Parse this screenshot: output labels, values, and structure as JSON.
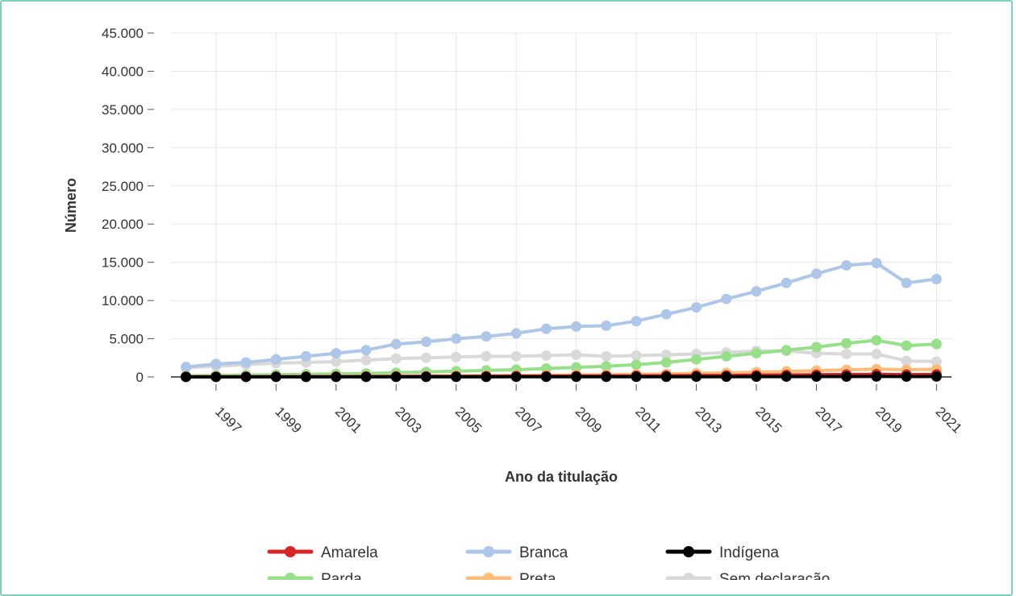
{
  "chart_data": {
    "type": "line",
    "xlabel": "Ano da titulação",
    "ylabel": "Número",
    "ylim": [
      0,
      45000
    ],
    "yticks": [
      0,
      5000,
      10000,
      15000,
      20000,
      25000,
      30000,
      35000,
      40000,
      45000
    ],
    "ytick_labels": [
      "0",
      "5.000",
      "10.000",
      "15.000",
      "20.000",
      "25.000",
      "30.000",
      "35.000",
      "40.000",
      "45.000"
    ],
    "xlim": [
      1995.5,
      2021.5
    ],
    "xticks": [
      1997,
      1999,
      2001,
      2003,
      2005,
      2007,
      2009,
      2011,
      2013,
      2015,
      2017,
      2019,
      2021
    ],
    "xtick_labels": [
      "1997",
      "1999",
      "2001",
      "2003",
      "2005",
      "2007",
      "2009",
      "2011",
      "2013",
      "2015",
      "2017",
      "2019",
      "2021"
    ],
    "x": [
      1996,
      1997,
      1998,
      1999,
      2000,
      2001,
      2002,
      2003,
      2004,
      2005,
      2006,
      2007,
      2008,
      2009,
      2010,
      2011,
      2012,
      2013,
      2014,
      2015,
      2016,
      2017,
      2018,
      2019,
      2020,
      2021
    ],
    "grid": true,
    "legend_position": "bottom",
    "series": [
      {
        "name": "Amarela",
        "color": "#d62728",
        "values": [
          20,
          25,
          30,
          35,
          40,
          45,
          50,
          60,
          70,
          80,
          90,
          100,
          110,
          120,
          130,
          140,
          160,
          180,
          200,
          230,
          260,
          290,
          320,
          350,
          310,
          330
        ]
      },
      {
        "name": "Branca",
        "color": "#aec7e8",
        "values": [
          1300,
          1700,
          1900,
          2300,
          2700,
          3100,
          3500,
          4300,
          4600,
          5000,
          5300,
          5700,
          6300,
          6600,
          6700,
          7300,
          8200,
          9100,
          10200,
          11200,
          12300,
          13500,
          14600,
          14900,
          12300,
          12800
        ]
      },
      {
        "name": "Indígena",
        "color": "#000000",
        "values": [
          5,
          5,
          6,
          7,
          8,
          9,
          10,
          10,
          12,
          13,
          15,
          17,
          19,
          20,
          22,
          25,
          28,
          32,
          36,
          40,
          45,
          50,
          55,
          60,
          55,
          60
        ]
      },
      {
        "name": "Parda",
        "color": "#98df8a",
        "values": [
          150,
          200,
          250,
          300,
          350,
          400,
          450,
          550,
          650,
          750,
          850,
          950,
          1100,
          1250,
          1400,
          1600,
          1900,
          2300,
          2700,
          3100,
          3500,
          3900,
          4400,
          4800,
          4100,
          4300
        ]
      },
      {
        "name": "Preta",
        "color": "#ffbb78",
        "values": [
          30,
          40,
          50,
          60,
          70,
          80,
          90,
          110,
          130,
          150,
          170,
          200,
          230,
          260,
          300,
          340,
          400,
          470,
          540,
          620,
          720,
          830,
          940,
          1020,
          950,
          1000
        ]
      },
      {
        "name": "Sem declaração",
        "color": "#d9d9d9",
        "values": [
          1200,
          1400,
          1600,
          1800,
          1900,
          2000,
          2200,
          2400,
          2500,
          2600,
          2700,
          2700,
          2800,
          2900,
          2700,
          2800,
          2900,
          3000,
          3200,
          3400,
          3400,
          3100,
          3000,
          3000,
          2100,
          2000
        ]
      }
    ]
  }
}
